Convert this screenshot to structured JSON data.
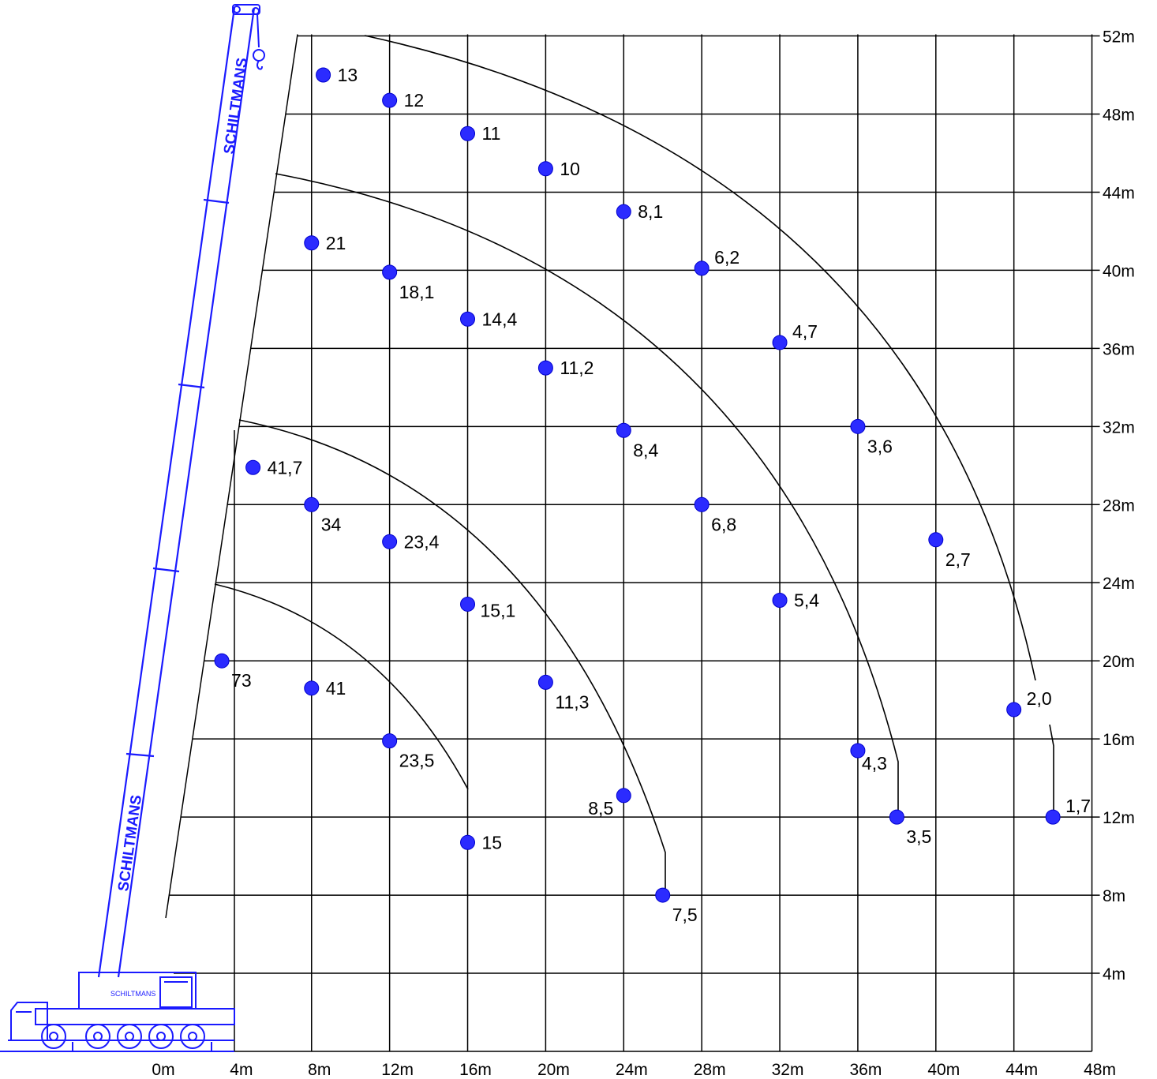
{
  "brand": {
    "boom_text_top": "SCHILTMANS",
    "boom_text_bottom": "SCHILTMANS",
    "cab_text": "SCHILTMANS",
    "color": "#1a1aff"
  },
  "chart_data": {
    "type": "scatter",
    "title": "",
    "xlabel": "",
    "ylabel": "",
    "x_unit": "m",
    "y_unit": "m",
    "xlim": [
      0,
      48
    ],
    "ylim": [
      0,
      52
    ],
    "x_ticks": [
      {
        "value": 0,
        "label": "0m"
      },
      {
        "value": 4,
        "label": "4m"
      },
      {
        "value": 8,
        "label": "8m"
      },
      {
        "value": 12,
        "label": "12m"
      },
      {
        "value": 16,
        "label": "16m"
      },
      {
        "value": 20,
        "label": "20m"
      },
      {
        "value": 24,
        "label": "24m"
      },
      {
        "value": 28,
        "label": "28m"
      },
      {
        "value": 32,
        "label": "32m"
      },
      {
        "value": 36,
        "label": "36m"
      },
      {
        "value": 40,
        "label": "40m"
      },
      {
        "value": 44,
        "label": "44m"
      },
      {
        "value": 48,
        "label": "48m"
      }
    ],
    "y_ticks": [
      {
        "value": 4,
        "label": "4m"
      },
      {
        "value": 8,
        "label": "8m"
      },
      {
        "value": 12,
        "label": "12m"
      },
      {
        "value": 16,
        "label": "16m"
      },
      {
        "value": 20,
        "label": "20m"
      },
      {
        "value": 24,
        "label": "24m"
      },
      {
        "value": 28,
        "label": "28m"
      },
      {
        "value": 32,
        "label": "32m"
      },
      {
        "value": 36,
        "label": "36m"
      },
      {
        "value": 40,
        "label": "40m"
      },
      {
        "value": 44,
        "label": "44m"
      },
      {
        "value": 48,
        "label": "48m"
      },
      {
        "value": 52,
        "label": "52m"
      }
    ],
    "point_color": "#2b2bff",
    "points": [
      {
        "x": 8.6,
        "y": 50.0,
        "label": "13"
      },
      {
        "x": 12,
        "y": 48.7,
        "label": "12"
      },
      {
        "x": 16,
        "y": 47.0,
        "label": "11"
      },
      {
        "x": 20,
        "y": 45.2,
        "label": "10"
      },
      {
        "x": 24,
        "y": 43.0,
        "label": "8,1"
      },
      {
        "x": 28,
        "y": 40.1,
        "label": "6,2"
      },
      {
        "x": 32,
        "y": 36.3,
        "label": "4,7"
      },
      {
        "x": 36,
        "y": 32.0,
        "label": "3,6"
      },
      {
        "x": 40,
        "y": 26.2,
        "label": "2,7"
      },
      {
        "x": 44,
        "y": 17.5,
        "label": "2,0"
      },
      {
        "x": 46,
        "y": 12.0,
        "label": "1,7"
      },
      {
        "x": 8,
        "y": 41.4,
        "label": "21"
      },
      {
        "x": 12,
        "y": 39.9,
        "label": "18,1"
      },
      {
        "x": 16,
        "y": 37.5,
        "label": "14,4"
      },
      {
        "x": 20,
        "y": 35.0,
        "label": "11,2"
      },
      {
        "x": 24,
        "y": 31.8,
        "label": "8,4"
      },
      {
        "x": 28,
        "y": 28.0,
        "label": "6,8"
      },
      {
        "x": 32,
        "y": 23.1,
        "label": "5,4"
      },
      {
        "x": 36,
        "y": 15.4,
        "label": "4,3"
      },
      {
        "x": 38,
        "y": 12.0,
        "label": "3,5"
      },
      {
        "x": 5,
        "y": 29.9,
        "label": "41,7"
      },
      {
        "x": 8,
        "y": 28.0,
        "label": "34"
      },
      {
        "x": 12,
        "y": 26.1,
        "label": "23,4"
      },
      {
        "x": 16,
        "y": 22.9,
        "label": "15,1"
      },
      {
        "x": 20,
        "y": 18.9,
        "label": "11,3"
      },
      {
        "x": 24,
        "y": 13.1,
        "label": "8,5"
      },
      {
        "x": 26,
        "y": 8.0,
        "label": "7,5"
      },
      {
        "x": 3.4,
        "y": 20.0,
        "label": "73"
      },
      {
        "x": 8,
        "y": 18.6,
        "label": "41"
      },
      {
        "x": 12,
        "y": 15.9,
        "label": "23,5"
      },
      {
        "x": 16,
        "y": 10.7,
        "label": "15"
      }
    ]
  }
}
